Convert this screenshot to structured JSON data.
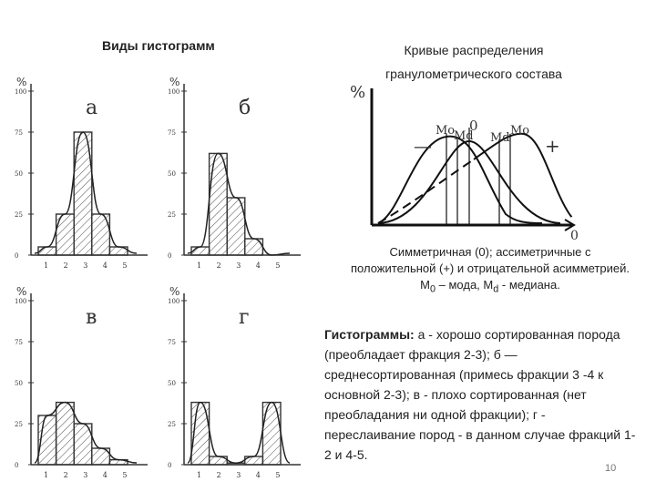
{
  "left_title": "Виды гистограмм",
  "right_title_line1": "Кривые распределения",
  "right_title_line2": "гранулометрического состава",
  "histograms": [
    {
      "id": "a",
      "label": "а",
      "y_unit": "%",
      "y_ticks": [
        "100",
        "75",
        "50",
        "25",
        "0"
      ],
      "x_ticks": [
        "1",
        "2",
        "3",
        "4",
        "5"
      ],
      "bars": [
        5,
        25,
        75,
        25,
        5
      ]
    },
    {
      "id": "b",
      "label": "б",
      "y_unit": "%",
      "y_ticks": [
        "100",
        "75",
        "50",
        "25",
        "0"
      ],
      "x_ticks": [
        "1",
        "2",
        "3",
        "4",
        "5"
      ],
      "bars": [
        5,
        62,
        35,
        10,
        0
      ]
    },
    {
      "id": "v",
      "label": "в",
      "y_unit": "%",
      "y_ticks": [
        "100",
        "75",
        "50",
        "25",
        "0"
      ],
      "x_ticks": [
        "1",
        "2",
        "3",
        "4",
        "5"
      ],
      "bars": [
        30,
        38,
        25,
        10,
        3
      ]
    },
    {
      "id": "g",
      "label": "г",
      "y_unit": "%",
      "y_ticks": [
        "100",
        "75",
        "50",
        "25",
        "0"
      ],
      "x_ticks": [
        "1",
        "2",
        "3",
        "4",
        "5"
      ],
      "bars": [
        38,
        5,
        1,
        5,
        38
      ]
    }
  ],
  "distribution_chart": {
    "y_label": "%",
    "x_end_label": "0",
    "minus_sign": "—",
    "plus_sign": "+",
    "labels": [
      "Mo",
      "Md",
      "0",
      "Md",
      "Mo"
    ]
  },
  "caption": {
    "part1": "Симметричная (0); ассиметричные с положительной (+) и отрицательной асимметрией. М",
    "sub1": "0",
    "part2": " – мода, М",
    "sub2": "d",
    "part3": " - медиана."
  },
  "description": {
    "bold": "Гистограммы:",
    "text": " а - хорошо сортированная порода (преобладает фракция 2-3); б — среднесортированная (примесь фракции 3 -4 к основной 2-3); в - плохо сортированная (нет преобладания ни одной фракции); г - переслаивание пород - в данном случае фракций 1-2 и 4-5."
  },
  "page_number": "10"
}
